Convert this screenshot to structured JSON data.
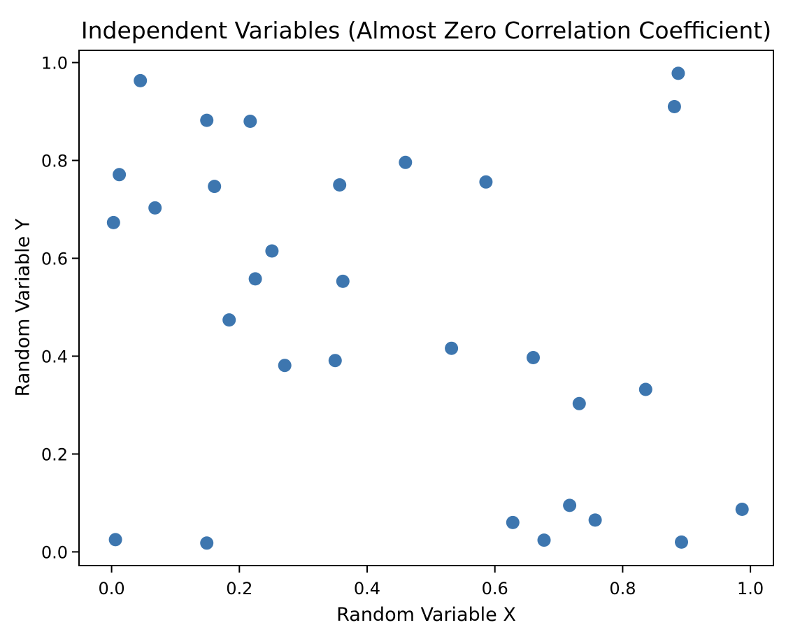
{
  "chart": {
    "title": "Independent Variables (Almost Zero Correlation Coefficient)",
    "xlabel": "Random Variable X",
    "ylabel": "Random Variable Y"
  },
  "chart_data": {
    "type": "scatter",
    "title": "Independent Variables (Almost Zero Correlation Coefficient)",
    "xlabel": "Random Variable X",
    "ylabel": "Random Variable Y",
    "xlim": [
      -0.051,
      1.036
    ],
    "ylim": [
      -0.028,
      1.025
    ],
    "grid": false,
    "legend": "none",
    "marker_color": "#3d76af",
    "axis_color": "#000000",
    "background_color": "#ffffff",
    "x_ticks": [
      0.0,
      0.2,
      0.4,
      0.6,
      0.8,
      1.0
    ],
    "x_tick_labels": [
      "0.0",
      "0.2",
      "0.4",
      "0.6",
      "0.8",
      "1.0"
    ],
    "y_ticks": [
      0.0,
      0.2,
      0.4,
      0.6,
      0.8,
      1.0
    ],
    "y_tick_labels": [
      "0.0",
      "0.2",
      "0.4",
      "0.6",
      "0.8",
      "1.0"
    ],
    "points": [
      [
        0.045,
        0.963
      ],
      [
        0.149,
        0.882
      ],
      [
        0.217,
        0.88
      ],
      [
        0.012,
        0.771
      ],
      [
        0.161,
        0.747
      ],
      [
        0.068,
        0.703
      ],
      [
        0.003,
        0.673
      ],
      [
        0.357,
        0.75
      ],
      [
        0.46,
        0.796
      ],
      [
        0.586,
        0.756
      ],
      [
        0.887,
        0.978
      ],
      [
        0.881,
        0.91
      ],
      [
        0.251,
        0.615
      ],
      [
        0.225,
        0.558
      ],
      [
        0.184,
        0.474
      ],
      [
        0.271,
        0.381
      ],
      [
        0.362,
        0.553
      ],
      [
        0.35,
        0.391
      ],
      [
        0.532,
        0.416
      ],
      [
        0.66,
        0.397
      ],
      [
        0.836,
        0.332
      ],
      [
        0.732,
        0.303
      ],
      [
        0.006,
        0.025
      ],
      [
        0.149,
        0.018
      ],
      [
        0.628,
        0.06
      ],
      [
        0.677,
        0.024
      ],
      [
        0.717,
        0.095
      ],
      [
        0.757,
        0.065
      ],
      [
        0.892,
        0.02
      ],
      [
        0.987,
        0.087
      ]
    ]
  }
}
